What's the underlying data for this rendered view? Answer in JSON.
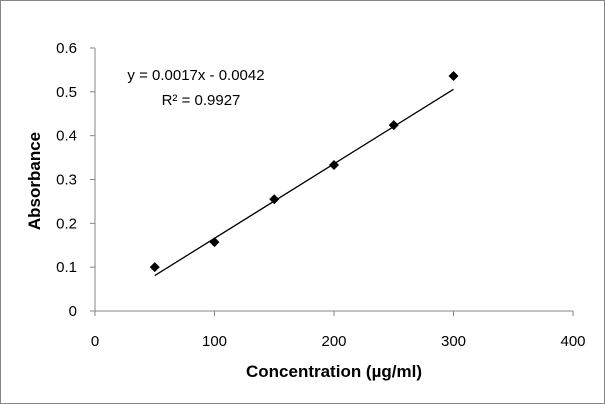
{
  "chart_data": {
    "type": "scatter",
    "title": "",
    "xlabel": "Concentration (µg/ml)",
    "ylabel": "Absorbance",
    "xlim": [
      0,
      400
    ],
    "ylim": [
      0,
      0.6
    ],
    "x_ticks": [
      0,
      100,
      200,
      300,
      400
    ],
    "y_ticks": [
      0,
      0.1,
      0.2,
      0.3,
      0.4,
      0.5,
      0.6
    ],
    "x_tick_labels": [
      "0",
      "100",
      "200",
      "300",
      "400"
    ],
    "y_tick_labels": [
      "0",
      "0.1",
      "0.2",
      "0.3",
      "0.4",
      "0.5",
      "0.6"
    ],
    "grid": false,
    "legend": "none",
    "series": [
      {
        "marker": "diamond",
        "color": "#000000",
        "x": [
          50,
          100,
          150,
          200,
          250,
          300
        ],
        "y": [
          0.1,
          0.157,
          0.255,
          0.333,
          0.424,
          0.536
        ]
      }
    ],
    "trendline": {
      "type": "linear",
      "slope": 0.0017,
      "intercept": -0.0042,
      "x_range": [
        50,
        300
      ],
      "equation_label": "y = 0.0017x - 0.0042",
      "r2_label": "R² = 0.9927"
    }
  }
}
